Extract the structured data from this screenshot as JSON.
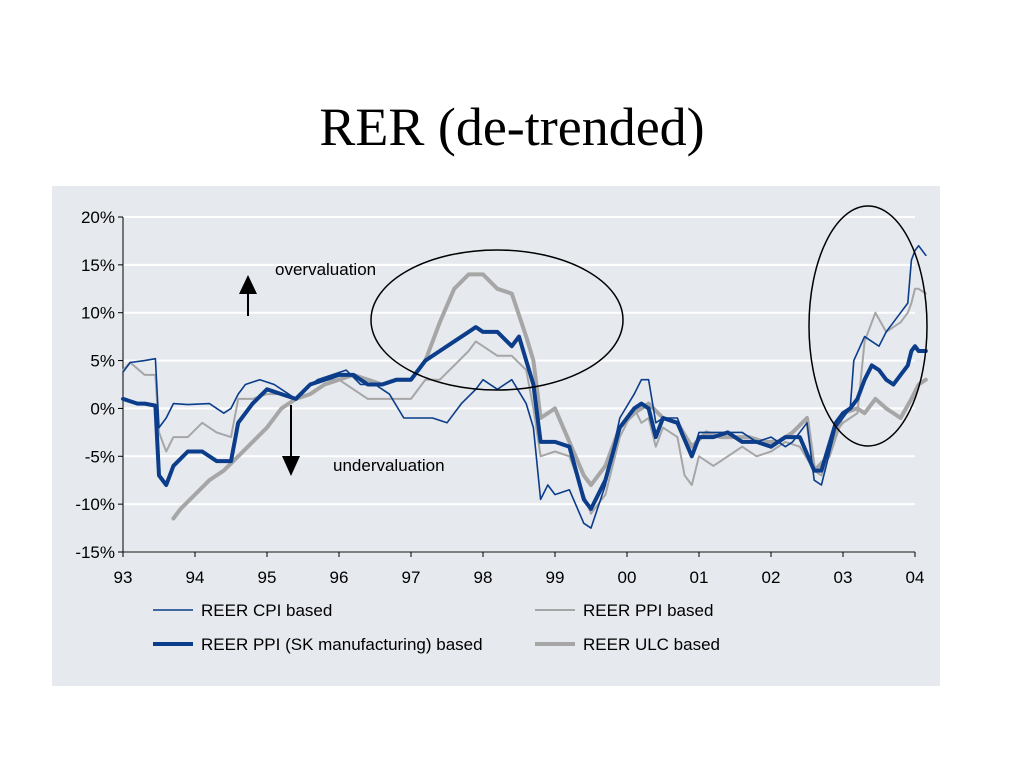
{
  "page": {
    "title": "RER (de-trended)"
  },
  "annotations": {
    "over": "overvaluation",
    "under": "undervaluation"
  },
  "colors": {
    "dark_blue": "#0b3d8a",
    "gray": "#a6a6a6",
    "panel": "#e6e9ee",
    "grid": "#ffffff"
  },
  "chart_data": {
    "type": "line",
    "title": "",
    "xlabel": "",
    "ylabel": "",
    "x_ticks": [
      "93",
      "94",
      "95",
      "96",
      "97",
      "98",
      "99",
      "00",
      "01",
      "02",
      "03",
      "04"
    ],
    "y_ticks": [
      "20%",
      "15%",
      "10%",
      "5%",
      "0%",
      "-5%",
      "-10%",
      "-15%"
    ],
    "xlim": [
      1993.0,
      2004.0
    ],
    "ylim": [
      -15,
      20
    ],
    "grid": true,
    "legend_position": "bottom",
    "series": [
      {
        "name": "REER CPI based",
        "style": "thin-dark",
        "x": [
          1993.0,
          1993.1,
          1993.3,
          1993.45,
          1993.5,
          1993.6,
          1993.7,
          1993.9,
          1994.2,
          1994.4,
          1994.5,
          1994.6,
          1994.7,
          1994.9,
          1995.1,
          1995.3,
          1995.4,
          1995.5,
          1995.7,
          1995.9,
          1996.1,
          1996.3,
          1996.5,
          1996.7,
          1996.9,
          1997.1,
          1997.3,
          1997.5,
          1997.7,
          1997.9,
          1998.0,
          1998.2,
          1998.4,
          1998.6,
          1998.7,
          1998.8,
          1998.9,
          1999.0,
          1999.2,
          1999.4,
          1999.5,
          1999.7,
          1999.9,
          2000.1,
          2000.2,
          2000.3,
          2000.4,
          2000.5,
          2000.7,
          2000.9,
          2001.0,
          2001.2,
          2001.4,
          2001.6,
          2001.8,
          2002.0,
          2002.2,
          2002.3,
          2002.5,
          2002.6,
          2002.7,
          2002.9,
          2003.0,
          2003.05,
          2003.1,
          2003.15,
          2003.3,
          2003.4,
          2003.5,
          2003.6,
          2003.7,
          2003.8,
          2003.9,
          2003.95,
          2004.0,
          2004.05,
          2004.15
        ],
        "values": [
          3.8,
          4.8,
          5.0,
          5.2,
          -2.0,
          -1.0,
          0.5,
          0.4,
          0.5,
          -0.5,
          0.0,
          1.5,
          2.5,
          3.0,
          2.5,
          1.5,
          1.0,
          1.8,
          3.0,
          3.5,
          4.0,
          2.5,
          2.5,
          1.5,
          -1.0,
          -1.0,
          -1.0,
          -1.5,
          0.5,
          2.0,
          3.0,
          2.0,
          3.0,
          0.5,
          -2.0,
          -9.5,
          -8.0,
          -9.0,
          -8.5,
          -12.0,
          -12.5,
          -8.0,
          -1.0,
          1.5,
          3.0,
          3.0,
          -1.5,
          -1.0,
          -1.0,
          -5.0,
          -2.5,
          -2.5,
          -2.5,
          -2.5,
          -3.5,
          -3.0,
          -4.0,
          -3.5,
          -1.5,
          -7.5,
          -8.0,
          -2.0,
          -1.0,
          -0.5,
          0.0,
          5.0,
          7.5,
          7.0,
          6.5,
          8.0,
          9.0,
          10.0,
          11.0,
          15.5,
          16.5,
          17.0,
          16.0
        ]
      },
      {
        "name": "REER PPI based",
        "style": "thin-gray",
        "x": [
          1993.0,
          1993.1,
          1993.3,
          1993.45,
          1993.5,
          1993.6,
          1993.7,
          1993.9,
          1994.1,
          1994.3,
          1994.5,
          1994.6,
          1994.8,
          1995.0,
          1995.2,
          1995.4,
          1995.6,
          1995.8,
          1996.0,
          1996.2,
          1996.4,
          1996.6,
          1996.8,
          1997.0,
          1997.2,
          1997.4,
          1997.6,
          1997.8,
          1997.9,
          1998.0,
          1998.2,
          1998.4,
          1998.6,
          1998.7,
          1998.8,
          1999.0,
          1999.2,
          1999.4,
          1999.5,
          1999.7,
          1999.9,
          2000.1,
          2000.2,
          2000.3,
          2000.4,
          2000.5,
          2000.7,
          2000.8,
          2000.9,
          2001.0,
          2001.2,
          2001.4,
          2001.6,
          2001.8,
          2002.0,
          2002.2,
          2002.4,
          2002.6,
          2002.7,
          2002.9,
          2003.0,
          2003.1,
          2003.2,
          2003.3,
          2003.45,
          2003.6,
          2003.7,
          2003.8,
          2003.9,
          2003.95,
          2004.0,
          2004.05,
          2004.15
        ],
        "values": [
          4.0,
          4.8,
          3.5,
          3.5,
          -2.5,
          -4.5,
          -3.0,
          -3.0,
          -1.5,
          -2.5,
          -3.0,
          1.0,
          1.0,
          1.5,
          1.5,
          1.0,
          2.5,
          3.0,
          3.0,
          2.0,
          1.0,
          1.0,
          1.0,
          1.0,
          3.0,
          3.0,
          4.5,
          6.0,
          7.0,
          6.5,
          5.5,
          5.5,
          4.0,
          0.0,
          -5.0,
          -4.5,
          -5.0,
          -9.0,
          -11.0,
          -9.0,
          -3.0,
          0.0,
          -1.5,
          -1.0,
          -4.0,
          -2.0,
          -3.0,
          -7.0,
          -8.0,
          -5.0,
          -6.0,
          -5.0,
          -4.0,
          -5.0,
          -4.5,
          -3.5,
          -4.0,
          -6.5,
          -7.0,
          -2.5,
          -1.5,
          -1.0,
          -0.5,
          7.0,
          10.0,
          8.0,
          8.5,
          9.0,
          10.0,
          11.0,
          12.5,
          12.5,
          12.0
        ]
      },
      {
        "name": "REER PPI (SK manufacturing) based",
        "style": "thick-dark",
        "x": [
          1993.0,
          1993.2,
          1993.3,
          1993.45,
          1993.5,
          1993.6,
          1993.7,
          1993.9,
          1994.1,
          1994.3,
          1994.5,
          1994.6,
          1994.8,
          1995.0,
          1995.2,
          1995.4,
          1995.6,
          1995.8,
          1996.0,
          1996.2,
          1996.4,
          1996.6,
          1996.8,
          1997.0,
          1997.2,
          1997.4,
          1997.6,
          1997.8,
          1997.9,
          1998.0,
          1998.2,
          1998.4,
          1998.5,
          1998.6,
          1998.7,
          1998.8,
          1999.0,
          1999.2,
          1999.4,
          1999.5,
          1999.7,
          1999.9,
          2000.1,
          2000.2,
          2000.3,
          2000.4,
          2000.5,
          2000.7,
          2000.9,
          2001.0,
          2001.2,
          2001.4,
          2001.6,
          2001.8,
          2002.0,
          2002.2,
          2002.4,
          2002.6,
          2002.7,
          2002.9,
          2003.0,
          2003.1,
          2003.2,
          2003.3,
          2003.4,
          2003.5,
          2003.6,
          2003.7,
          2003.8,
          2003.9,
          2003.95,
          2004.0,
          2004.05,
          2004.15
        ],
        "values": [
          1.0,
          0.5,
          0.5,
          0.3,
          -7.0,
          -8.0,
          -6.0,
          -4.5,
          -4.5,
          -5.5,
          -5.5,
          -1.5,
          0.5,
          2.0,
          1.5,
          1.0,
          2.5,
          3.0,
          3.5,
          3.5,
          2.5,
          2.5,
          3.0,
          3.0,
          5.0,
          6.0,
          7.0,
          8.0,
          8.5,
          8.0,
          8.0,
          6.5,
          7.5,
          5.0,
          2.5,
          -3.5,
          -3.5,
          -4.0,
          -9.5,
          -10.5,
          -7.5,
          -2.0,
          0.0,
          0.5,
          0.0,
          -3.0,
          -1.0,
          -1.5,
          -5.0,
          -3.0,
          -3.0,
          -2.5,
          -3.5,
          -3.5,
          -4.0,
          -3.0,
          -3.0,
          -6.5,
          -6.5,
          -1.5,
          -0.5,
          0.0,
          1.0,
          3.0,
          4.5,
          4.0,
          3.0,
          2.5,
          3.5,
          4.5,
          6.0,
          6.5,
          6.0,
          6.0
        ]
      },
      {
        "name": "REER ULC based",
        "style": "thick-gray",
        "x": [
          1993.7,
          1993.8,
          1994.0,
          1994.2,
          1994.4,
          1994.6,
          1994.8,
          1995.0,
          1995.2,
          1995.4,
          1995.6,
          1995.8,
          1996.0,
          1996.2,
          1996.4,
          1996.6,
          1996.8,
          1997.0,
          1997.2,
          1997.4,
          1997.6,
          1997.8,
          1998.0,
          1998.2,
          1998.4,
          1998.6,
          1998.7,
          1998.8,
          1999.0,
          1999.2,
          1999.4,
          1999.5,
          1999.7,
          1999.9,
          2000.1,
          2000.3,
          2000.5,
          2000.7,
          2000.9,
          2001.1,
          2001.3,
          2001.5,
          2001.7,
          2001.9,
          2002.1,
          2002.3,
          2002.5,
          2002.6,
          2002.8,
          2003.0,
          2003.2,
          2003.3,
          2003.45,
          2003.6,
          2003.8,
          2003.95,
          2004.05,
          2004.15
        ],
        "values": [
          -11.5,
          -10.5,
          -9.0,
          -7.5,
          -6.5,
          -5.0,
          -3.5,
          -2.0,
          0.0,
          1.0,
          1.5,
          2.5,
          3.0,
          3.5,
          3.0,
          2.5,
          3.0,
          3.0,
          5.0,
          9.0,
          12.5,
          14.0,
          14.0,
          12.5,
          12.0,
          7.5,
          5.0,
          -1.0,
          0.0,
          -3.5,
          -7.0,
          -8.0,
          -6.0,
          -2.0,
          -0.5,
          0.5,
          -1.0,
          -1.5,
          -4.0,
          -2.5,
          -3.0,
          -3.0,
          -3.0,
          -3.5,
          -3.5,
          -2.5,
          -1.0,
          -6.5,
          -5.0,
          -0.5,
          0.0,
          -0.5,
          1.0,
          0.0,
          -1.0,
          1.0,
          2.5,
          3.0
        ]
      }
    ],
    "legend": [
      "REER CPI based",
      "REER PPI based",
      "REER PPI (SK manufacturing) based",
      "REER ULC based"
    ]
  }
}
